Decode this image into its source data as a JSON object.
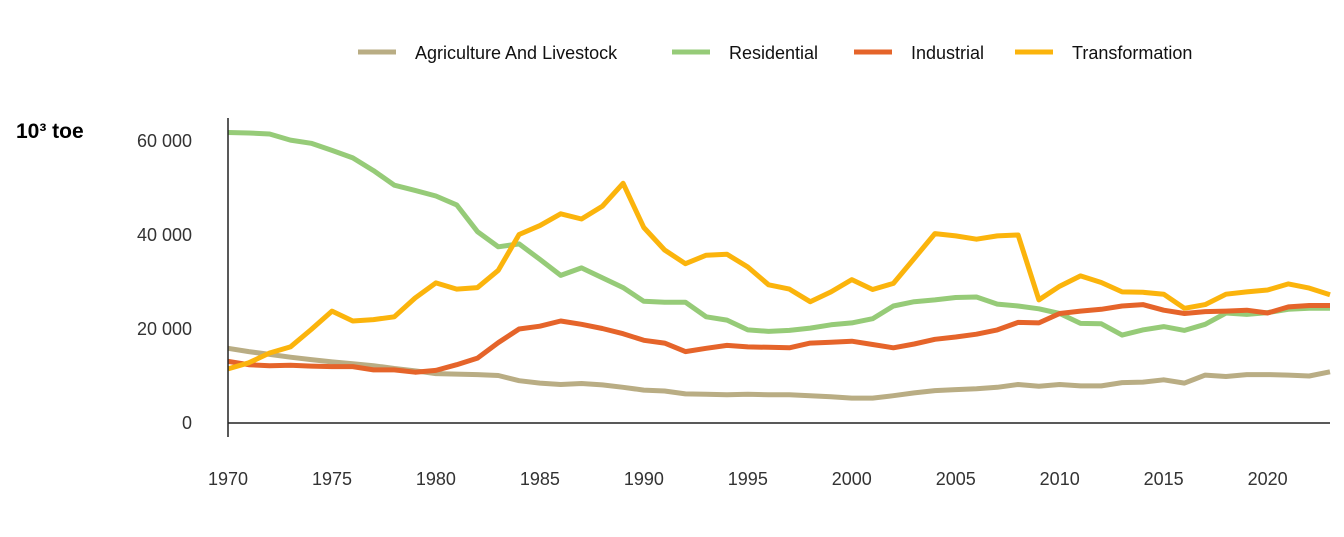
{
  "chart_data": {
    "type": "line",
    "unit_label": "10³ toe",
    "ylim": [
      0,
      60000
    ],
    "xlim": [
      1970,
      2023
    ],
    "y_ticks": [
      0,
      20000,
      40000,
      60000
    ],
    "y_tick_labels": [
      "0",
      "20 000",
      "40 000",
      "60 000"
    ],
    "x_ticks": [
      1970,
      1975,
      1980,
      1985,
      1990,
      1995,
      2000,
      2005,
      2010,
      2015,
      2020
    ],
    "x_tick_labels": [
      "1970",
      "1975",
      "1980",
      "1985",
      "1990",
      "1995",
      "2000",
      "2005",
      "2010",
      "2015",
      "2020"
    ],
    "grid": false,
    "legend_position": "top",
    "x": [
      1970,
      1971,
      1972,
      1973,
      1974,
      1975,
      1976,
      1977,
      1978,
      1979,
      1980,
      1981,
      1982,
      1983,
      1984,
      1985,
      1986,
      1987,
      1988,
      1989,
      1990,
      1991,
      1992,
      1993,
      1994,
      1995,
      1996,
      1997,
      1998,
      1999,
      2000,
      2001,
      2002,
      2003,
      2004,
      2005,
      2006,
      2007,
      2008,
      2009,
      2010,
      2011,
      2012,
      2013,
      2014,
      2015,
      2016,
      2017,
      2018,
      2019,
      2020,
      2021,
      2022,
      2023
    ],
    "series": [
      {
        "name": "Agriculture And Livestock",
        "color": "#b9ad84",
        "values": [
          15900,
          15200,
          14600,
          14000,
          13500,
          13000,
          12600,
          12200,
          11600,
          11100,
          10500,
          10400,
          10300,
          10100,
          9000,
          8500,
          8200,
          8400,
          8100,
          7600,
          7000,
          6800,
          6200,
          6100,
          6000,
          6100,
          6000,
          6000,
          5800,
          5600,
          5300,
          5300,
          5800,
          6400,
          6900,
          7100,
          7300,
          7600,
          8200,
          7800,
          8200,
          7900,
          7900,
          8600,
          8700,
          9200,
          8500,
          10200,
          9900,
          10300,
          10300,
          10200,
          10000,
          10900
        ]
      },
      {
        "name": "Residential",
        "color": "#96cb78",
        "values": [
          61800,
          61700,
          61500,
          60200,
          59500,
          58000,
          56400,
          53700,
          50600,
          49500,
          48300,
          46400,
          40700,
          37500,
          38100,
          34800,
          31400,
          33000,
          30900,
          28800,
          25900,
          25700,
          25700,
          22600,
          21900,
          19800,
          19500,
          19700,
          20200,
          20900,
          21300,
          22200,
          24900,
          25800,
          26200,
          26700,
          26800,
          25300,
          24900,
          24300,
          23300,
          21200,
          21100,
          18700,
          19800,
          20500,
          19700,
          21000,
          23400,
          23100,
          23500,
          24200,
          24400,
          24400
        ]
      },
      {
        "name": "Industrial",
        "color": "#e5642a",
        "values": [
          13100,
          12400,
          12200,
          12300,
          12100,
          12000,
          12000,
          11300,
          11300,
          10800,
          11200,
          12400,
          13800,
          17100,
          20000,
          20600,
          21700,
          21000,
          20100,
          19000,
          17600,
          17000,
          15200,
          15900,
          16500,
          16200,
          16100,
          16000,
          17000,
          17200,
          17400,
          16700,
          16000,
          16800,
          17800,
          18300,
          18900,
          19800,
          21400,
          21300,
          23300,
          23800,
          24200,
          24900,
          25200,
          24000,
          23300,
          23700,
          23800,
          24000,
          23400,
          24700,
          25000,
          25000
        ]
      },
      {
        "name": "Transformation",
        "color": "#fbb40c",
        "values": [
          11500,
          12800,
          14900,
          16200,
          19900,
          23800,
          21700,
          22000,
          22600,
          26600,
          29800,
          28500,
          28800,
          32500,
          40100,
          42000,
          44500,
          43400,
          46100,
          51000,
          41600,
          36800,
          33900,
          35700,
          35900,
          33200,
          29400,
          28500,
          25800,
          27900,
          30500,
          28400,
          29700,
          35000,
          40300,
          39800,
          39100,
          39800,
          40000,
          26200,
          29100,
          31300,
          29900,
          27900,
          27800,
          27400,
          24400,
          25200,
          27400,
          27900,
          28300,
          29600,
          28700,
          27300
        ]
      }
    ]
  }
}
